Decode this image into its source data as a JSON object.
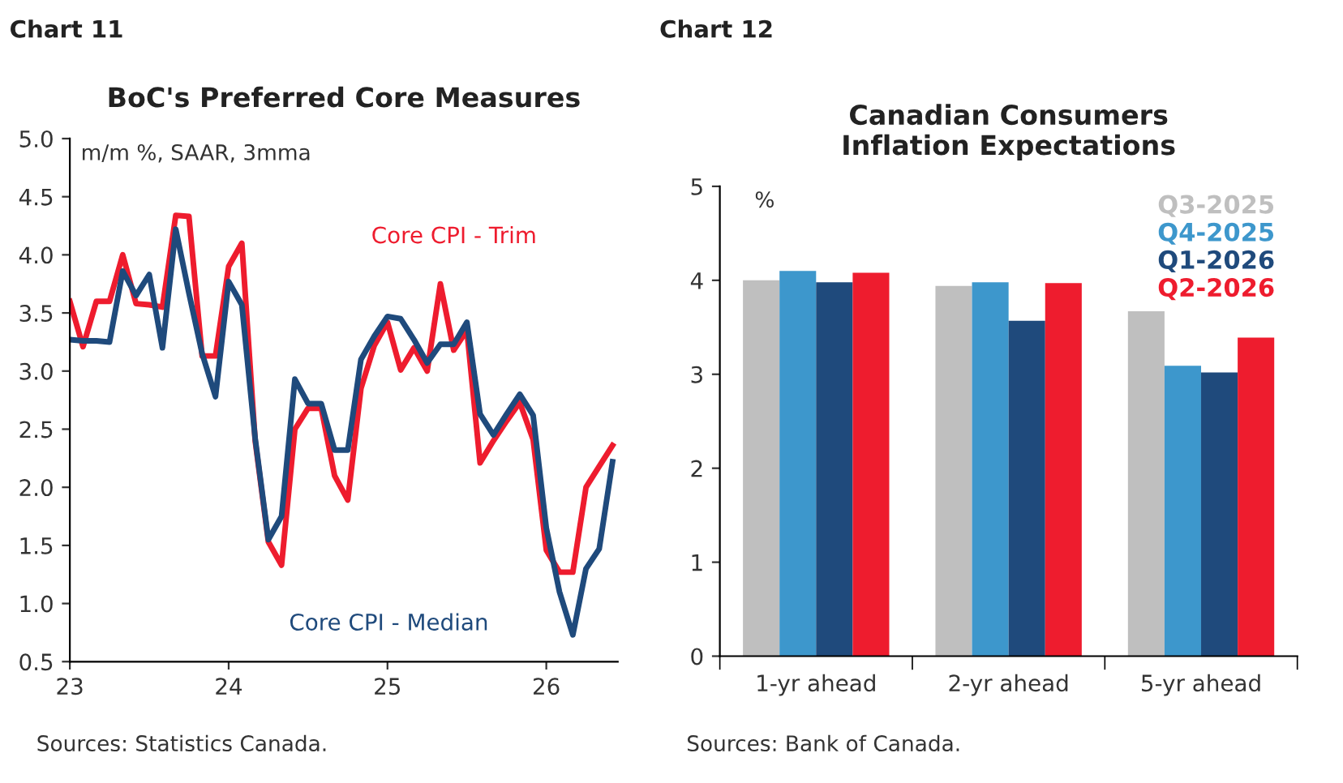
{
  "chart_data": [
    {
      "type": "line",
      "title": "BoC's Preferred Core Measures",
      "ylabel": "m/m %, SAAR, 3mma",
      "annotations": [
        "Chart 11",
        "Sources: Statistics Canada."
      ],
      "x": [
        23.0,
        23.083,
        23.167,
        23.25,
        23.333,
        23.417,
        23.5,
        23.583,
        23.667,
        23.75,
        23.833,
        23.917,
        24.0,
        24.083,
        24.167,
        24.25,
        24.333,
        24.417,
        24.5,
        24.583,
        24.667,
        24.75,
        24.833,
        24.917,
        25.0,
        25.083,
        25.167,
        25.25,
        25.333,
        25.417,
        25.5,
        25.583,
        25.667,
        25.75,
        25.833,
        25.917,
        26.0,
        26.083,
        26.167,
        26.25,
        26.333,
        26.417
      ],
      "series": [
        {
          "name": "Core CPI - Trim",
          "color": "#ee1c2e",
          "values": [
            3.6,
            3.21,
            3.6,
            3.6,
            4.0,
            3.58,
            3.57,
            3.55,
            4.34,
            4.33,
            3.13,
            3.13,
            3.9,
            4.1,
            2.4,
            1.53,
            1.33,
            2.5,
            2.68,
            2.68,
            2.1,
            1.89,
            2.85,
            3.22,
            3.42,
            3.01,
            3.2,
            3.0,
            3.75,
            3.18,
            3.35,
            2.21,
            2.4,
            2.57,
            2.73,
            2.41,
            1.46,
            1.27,
            1.27,
            2.0,
            2.18,
            2.36
          ]
        },
        {
          "name": "Core CPI - Median",
          "color": "#1f4a7c",
          "values": [
            3.27,
            3.26,
            3.26,
            3.25,
            3.86,
            3.65,
            3.83,
            3.2,
            4.22,
            3.67,
            3.15,
            2.78,
            3.77,
            3.57,
            2.42,
            1.55,
            1.75,
            2.93,
            2.72,
            2.72,
            2.32,
            2.32,
            3.1,
            3.3,
            3.47,
            3.45,
            3.27,
            3.07,
            3.23,
            3.23,
            3.42,
            2.63,
            2.45,
            2.63,
            2.8,
            2.62,
            1.65,
            1.1,
            0.73,
            1.3,
            1.47,
            2.22
          ]
        }
      ],
      "xlim": [
        23,
        26.45
      ],
      "xticks": [
        23,
        24,
        25,
        26
      ],
      "ylim": [
        0.5,
        5.0
      ],
      "yticks": [
        0.5,
        {
          "value": 1.0,
          "label": "1.0"
        },
        1.5,
        {
          "value": 2.0,
          "label": "2.0"
        },
        2.5,
        {
          "value": 3.0,
          "label": "3.0"
        },
        3.5,
        {
          "value": 4.0,
          "label": "4.0"
        },
        4.5,
        {
          "value": 5.0,
          "label": "5.0"
        }
      ],
      "grid": false,
      "legend": false,
      "line_style": "solid",
      "marker": "none"
    },
    {
      "type": "bar",
      "title": "Canadian Consumers\nInflation Expectations",
      "ylabel": "%",
      "annotations": [
        "Chart 12",
        "Sources: Bank of Canada."
      ],
      "categories": [
        "1-yr ahead",
        "2-yr ahead",
        "5-yr ahead"
      ],
      "series": [
        {
          "name": "Q3-2025",
          "color": "#bfbfbf",
          "values": [
            4.0,
            3.94,
            3.67
          ]
        },
        {
          "name": "Q4-2025",
          "color": "#3d97cc",
          "values": [
            4.1,
            3.98,
            3.09
          ]
        },
        {
          "name": "Q1-2026",
          "color": "#1f4a7c",
          "values": [
            3.98,
            3.57,
            3.02
          ]
        },
        {
          "name": "Q2-2026",
          "color": "#ee1c2e",
          "values": [
            4.08,
            3.97,
            3.39
          ]
        }
      ],
      "ylim": [
        0,
        5
      ],
      "yticks": [
        0,
        1,
        2,
        3,
        4,
        5
      ],
      "grid": false,
      "legend": "top right"
    }
  ]
}
